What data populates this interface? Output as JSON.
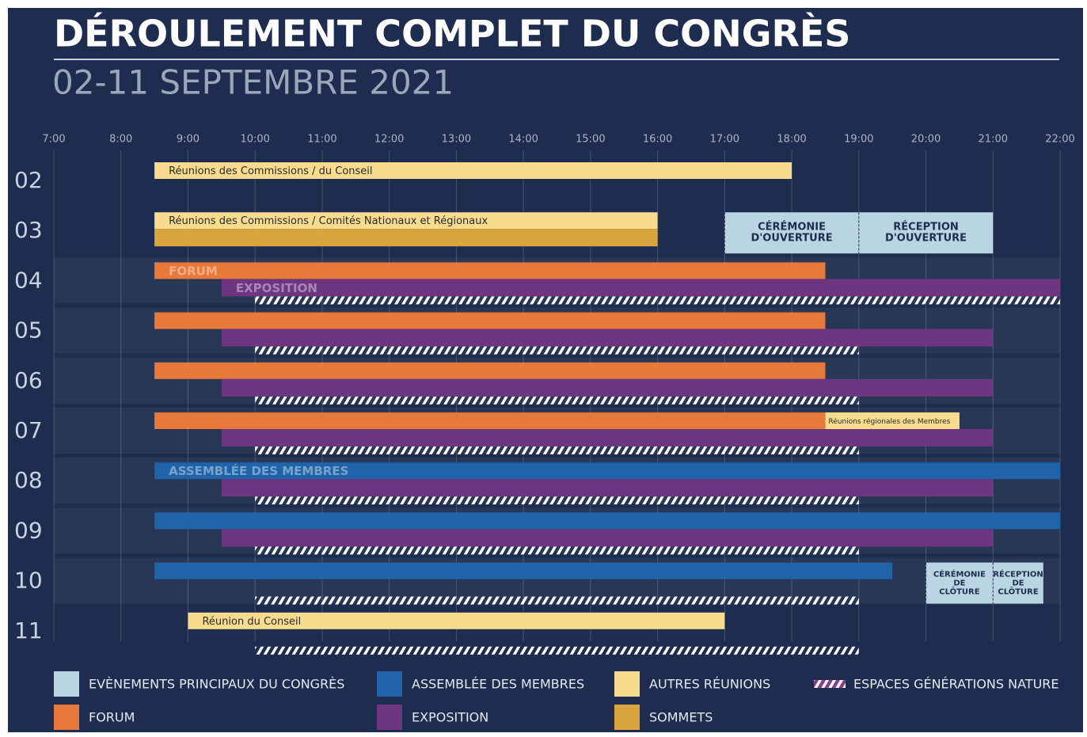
{
  "chart_data": {
    "type": "gantt",
    "title": "DÉROULEMENT COMPLET DU CONGRÈS",
    "subtitle": "02-11 SEPTEMBRE 2021",
    "days": [
      "02",
      "03",
      "04",
      "05",
      "06",
      "07",
      "08",
      "09",
      "10",
      "11"
    ],
    "xlim": [
      7,
      22
    ],
    "xticks": [
      {
        "value": 7,
        "label": "7:00"
      },
      {
        "value": 8,
        "label": "8:00"
      },
      {
        "value": 9,
        "label": "9:00"
      },
      {
        "value": 10,
        "label": "10:00"
      },
      {
        "value": 11,
        "label": "11:00"
      },
      {
        "value": 12,
        "label": "12:00"
      },
      {
        "value": 13,
        "label": "13:00"
      },
      {
        "value": 14,
        "label": "14:00"
      },
      {
        "value": 15,
        "label": "15:00"
      },
      {
        "value": 16,
        "label": "16:00"
      },
      {
        "value": 17,
        "label": "17:00"
      },
      {
        "value": 18,
        "label": "18:00"
      },
      {
        "value": 19,
        "label": "19:00"
      },
      {
        "value": 20,
        "label": "20:00"
      },
      {
        "value": 21,
        "label": "21:00"
      },
      {
        "value": 22,
        "label": "22:00"
      }
    ],
    "grid": true,
    "series": [
      {
        "name": "EVÈNEMENTS PRINCIPAUX DU CONGRÈS",
        "color": "#b9d5e2",
        "tasks": [
          {
            "day": "03",
            "start": 17,
            "end": 19,
            "label": [
              "CÉRÉMONIE",
              "D'OUVERTURE"
            ]
          },
          {
            "day": "03",
            "start": 19,
            "end": 21,
            "label": [
              "RÉCEPTION",
              "D'OUVERTURE"
            ]
          },
          {
            "day": "10",
            "start": 20,
            "end": 21,
            "label": [
              "CÉRÉMONIE",
              "DE",
              "CLÔTURE"
            ]
          },
          {
            "day": "10",
            "start": 21,
            "end": 21.75,
            "label": [
              "RÉCEPTION",
              "DE",
              "CLÔTURE"
            ]
          }
        ]
      },
      {
        "name": "ASSEMBLÉE DES MEMBRES",
        "color": "#1f64a8",
        "tasks": [
          {
            "day": "08",
            "start": 8.5,
            "end": 22,
            "label": "ASSEMBLÉE DES MEMBRES"
          },
          {
            "day": "09",
            "start": 8.5,
            "end": 22
          },
          {
            "day": "10",
            "start": 8.5,
            "end": 19.5
          }
        ]
      },
      {
        "name": "AUTRES RÉUNIONS",
        "color": "#f6dc8c",
        "tasks": [
          {
            "day": "02",
            "start": 8.5,
            "end": 18,
            "label": "Réunions des Commissions / du Conseil"
          },
          {
            "day": "03",
            "start": 8.5,
            "end": 16,
            "label": "Réunions des Commissions / Comités Nationaux et Régionaux"
          },
          {
            "day": "07",
            "start": 18.5,
            "end": 20.5,
            "label": "Réunions régionales des Membres"
          },
          {
            "day": "11",
            "start": 9,
            "end": 17,
            "label": "Réunion du Conseil"
          }
        ]
      },
      {
        "name": "ESPACES GÉNÉRATIONS NATURE",
        "color": "#8a3d8e",
        "hatch": true,
        "tasks": [
          {
            "day": "04",
            "start": 10,
            "end": 22
          },
          {
            "day": "05",
            "start": 10,
            "end": 19
          },
          {
            "day": "06",
            "start": 10,
            "end": 19
          },
          {
            "day": "07",
            "start": 10,
            "end": 19
          },
          {
            "day": "08",
            "start": 10,
            "end": 19
          },
          {
            "day": "09",
            "start": 10,
            "end": 19
          },
          {
            "day": "10",
            "start": 10,
            "end": 19
          },
          {
            "day": "11",
            "start": 10,
            "end": 19
          }
        ]
      },
      {
        "name": "FORUM",
        "color": "#e8793a",
        "tasks": [
          {
            "day": "04",
            "start": 8.5,
            "end": 18.5,
            "label": "FORUM"
          },
          {
            "day": "05",
            "start": 8.5,
            "end": 18.5
          },
          {
            "day": "06",
            "start": 8.5,
            "end": 18.5
          },
          {
            "day": "07",
            "start": 8.5,
            "end": 18.5
          }
        ]
      },
      {
        "name": "EXPOSITION",
        "color": "#6e3680",
        "tasks": [
          {
            "day": "04",
            "start": 9.5,
            "end": 22,
            "label": "EXPOSITION"
          },
          {
            "day": "05",
            "start": 9.5,
            "end": 21
          },
          {
            "day": "06",
            "start": 9.5,
            "end": 21
          },
          {
            "day": "07",
            "start": 9.5,
            "end": 21
          },
          {
            "day": "08",
            "start": 9.5,
            "end": 21
          },
          {
            "day": "09",
            "start": 9.5,
            "end": 21
          }
        ]
      },
      {
        "name": "SOMMETS",
        "color": "#dba53e",
        "tasks": [
          {
            "day": "03",
            "start": 8.5,
            "end": 16
          }
        ]
      }
    ]
  }
}
